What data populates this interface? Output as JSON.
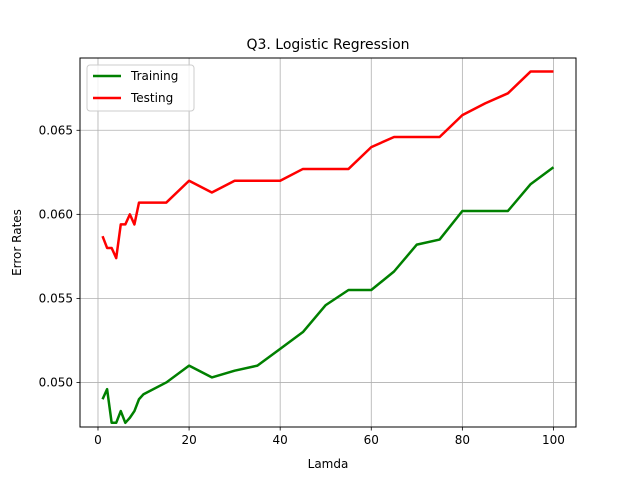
{
  "chart_data": {
    "type": "line",
    "title": "Q3. Logistic Regression",
    "xlabel": "Lamda",
    "ylabel": "Error Rates",
    "xlim": [
      -3.95,
      104.95
    ],
    "ylim": [
      0.04735,
      0.0693
    ],
    "xticks": [
      0,
      20,
      40,
      60,
      80,
      100
    ],
    "xtick_labels": [
      "0",
      "20",
      "40",
      "60",
      "80",
      "100"
    ],
    "yticks": [
      0.05,
      0.055,
      0.06,
      0.065
    ],
    "ytick_labels": [
      "0.050",
      "0.055",
      "0.060",
      "0.065"
    ],
    "grid": true,
    "legend_position": "top-left",
    "series": [
      {
        "name": "Training",
        "color": "#008000",
        "x": [
          1,
          2,
          3,
          4,
          5,
          6,
          7,
          8,
          9,
          10,
          15,
          20,
          25,
          30,
          35,
          40,
          45,
          50,
          55,
          60,
          65,
          70,
          75,
          80,
          85,
          90,
          95,
          100
        ],
        "y": [
          0.049,
          0.0496,
          0.0476,
          0.0476,
          0.0483,
          0.0476,
          0.0479,
          0.0483,
          0.049,
          0.0493,
          0.05,
          0.051,
          0.0503,
          0.0507,
          0.051,
          0.052,
          0.053,
          0.0546,
          0.0555,
          0.0555,
          0.0566,
          0.0582,
          0.0585,
          0.0602,
          0.0602,
          0.0602,
          0.0618,
          0.0628
        ]
      },
      {
        "name": "Testing",
        "color": "#ff0000",
        "x": [
          1,
          2,
          3,
          4,
          5,
          6,
          7,
          8,
          9,
          10,
          15,
          20,
          25,
          30,
          35,
          40,
          45,
          50,
          55,
          60,
          65,
          70,
          75,
          80,
          85,
          90,
          95,
          100
        ],
        "y": [
          0.0587,
          0.058,
          0.058,
          0.0574,
          0.0594,
          0.0594,
          0.06,
          0.0594,
          0.0607,
          0.0607,
          0.0607,
          0.062,
          0.0613,
          0.062,
          0.062,
          0.062,
          0.0627,
          0.0627,
          0.0627,
          0.064,
          0.0646,
          0.0646,
          0.0646,
          0.0659,
          0.0666,
          0.0672,
          0.0685,
          0.0685
        ]
      }
    ]
  }
}
